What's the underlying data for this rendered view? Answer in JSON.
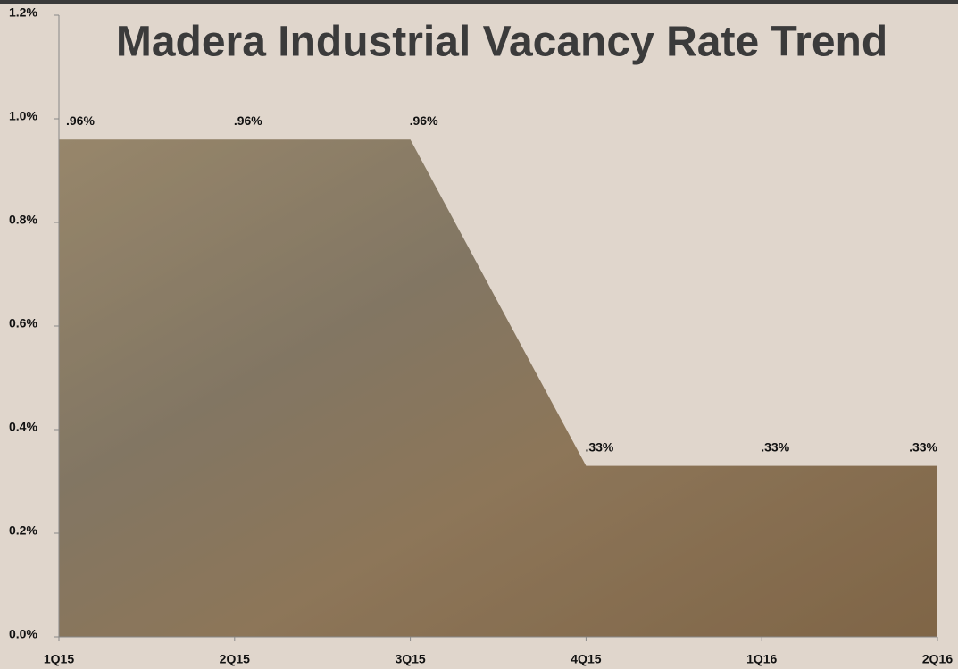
{
  "chart_data": {
    "type": "area",
    "title": "Madera Industrial Vacancy Rate Trend",
    "categories": [
      "1Q15",
      "2Q15",
      "3Q15",
      "4Q15",
      "1Q16",
      "2Q16"
    ],
    "values": [
      0.96,
      0.96,
      0.96,
      0.33,
      0.33,
      0.33
    ],
    "value_labels": [
      ".96%",
      ".96%",
      ".96%",
      ".33%",
      ".33%",
      ".33%"
    ],
    "color": "#8f7a5a",
    "ylim": [
      0,
      1.2
    ],
    "yticks": [
      {
        "value": 0,
        "label": "0.0%"
      },
      {
        "value": 0.2,
        "label": "0.2%"
      },
      {
        "value": 0.4,
        "label": "0.4%"
      },
      {
        "value": 0.6,
        "label": "0.6%"
      },
      {
        "value": 0.8,
        "label": "0.8%"
      },
      {
        "value": 1.0,
        "label": "1.0%"
      },
      {
        "value": 1.2,
        "label": "1.2%"
      }
    ],
    "grid": false
  }
}
